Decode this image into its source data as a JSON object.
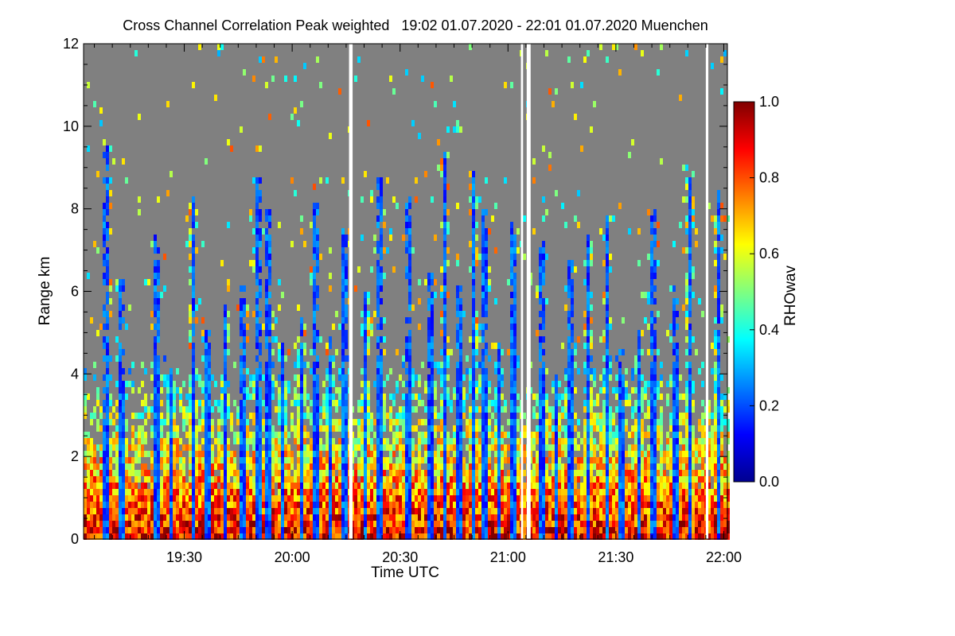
{
  "chart_data": {
    "type": "heatmap",
    "title": "Cross Channel Correlation Peak weighted   19:02 01.07.2020 - 22:01 01.07.2020 Muenchen",
    "xlabel": "Time UTC",
    "ylabel": "Range km",
    "colorbar_label": "RHOwav",
    "x_range_min": [
      1142,
      1321
    ],
    "ylim": [
      0,
      12
    ],
    "clim": [
      0.0,
      1.0
    ],
    "x_ticks": [
      {
        "min": 1170,
        "label": "19:30"
      },
      {
        "min": 1200,
        "label": "20:00"
      },
      {
        "min": 1230,
        "label": "20:30"
      },
      {
        "min": 1260,
        "label": "21:00"
      },
      {
        "min": 1290,
        "label": "21:30"
      },
      {
        "min": 1320,
        "label": "22:00"
      }
    ],
    "y_ticks": [
      {
        "v": 0,
        "label": "0"
      },
      {
        "v": 2,
        "label": "2"
      },
      {
        "v": 4,
        "label": "4"
      },
      {
        "v": 6,
        "label": "6"
      },
      {
        "v": 8,
        "label": "8"
      },
      {
        "v": 10,
        "label": "10"
      },
      {
        "v": 12,
        "label": "12"
      }
    ],
    "colorbar_ticks": [
      {
        "v": 0.0,
        "label": "0.0"
      },
      {
        "v": 0.2,
        "label": "0.2"
      },
      {
        "v": 0.4,
        "label": "0.4"
      },
      {
        "v": 0.6,
        "label": "0.6"
      },
      {
        "v": 0.8,
        "label": "0.8"
      },
      {
        "v": 1.0,
        "label": "1.0"
      }
    ],
    "data_gaps_min": [
      [
        1215.8,
        1216.8
      ],
      [
        1263.6,
        1264.2
      ],
      [
        1265.2,
        1266.3
      ],
      [
        1315.0,
        1315.7
      ]
    ],
    "no_data_color": "#808080",
    "colormap": [
      "#00008f",
      "#0000ff",
      "#00ffff",
      "#ffff00",
      "#ff0000",
      "#800000"
    ]
  }
}
